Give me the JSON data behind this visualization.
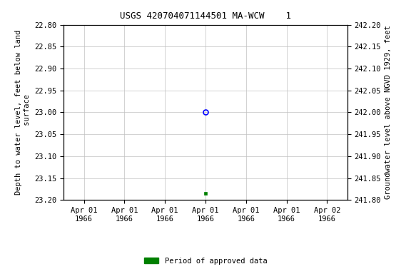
{
  "title": "USGS 420704071144501 MA-WCW    1",
  "ylabel_left": "Depth to water level, feet below land\n surface",
  "ylabel_right": "Groundwater level above NGVD 1929, feet",
  "ylim_left": [
    22.8,
    23.2
  ],
  "ylim_right": [
    241.8,
    242.2
  ],
  "yticks_left": [
    22.8,
    22.85,
    22.9,
    22.95,
    23.0,
    23.05,
    23.1,
    23.15,
    23.2
  ],
  "yticks_right": [
    241.8,
    241.85,
    241.9,
    241.95,
    242.0,
    242.05,
    242.1,
    242.15,
    242.2
  ],
  "point_unapproved_value": 23.0,
  "point_approved_value": 23.185,
  "open_circle_color": "blue",
  "filled_square_color": "#008000",
  "legend_label": "Period of approved data",
  "legend_color": "#008000",
  "background_color": "#ffffff",
  "grid_color": "#c0c0c0",
  "tick_label_fontsize": 7.5,
  "title_fontsize": 9,
  "axis_label_fontsize": 7.5
}
